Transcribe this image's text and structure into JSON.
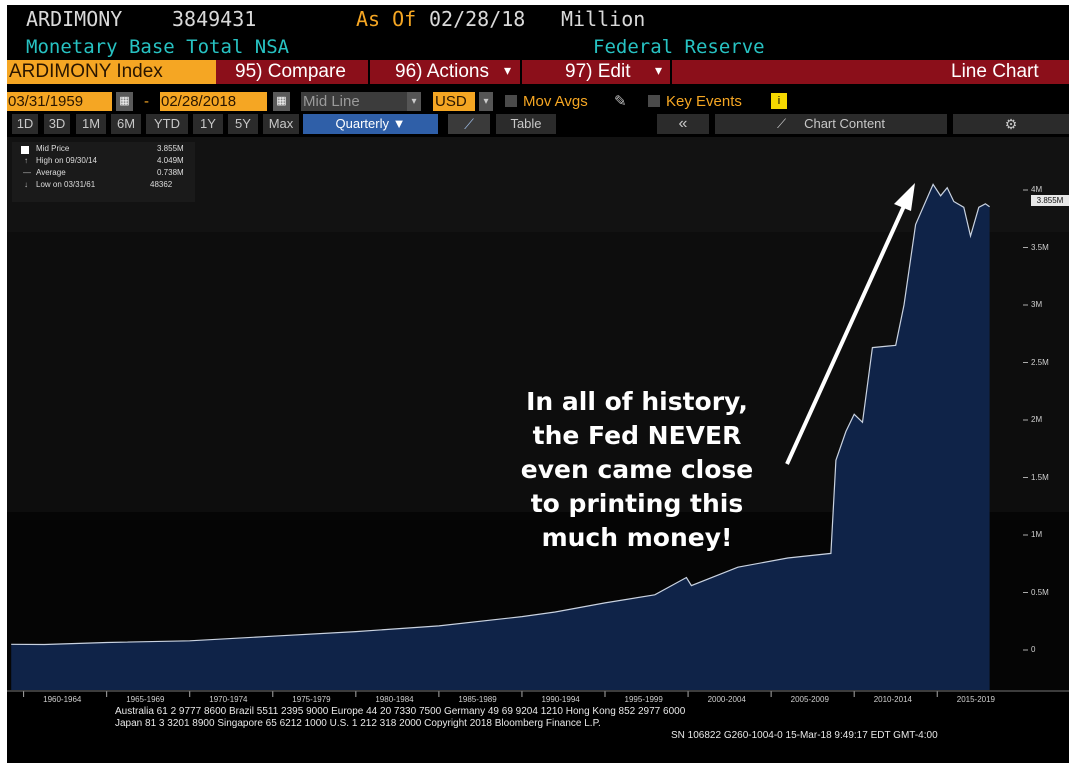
{
  "header": {
    "ticker": "ARDIMONY",
    "value": "3849431",
    "as_of_label": "As Of",
    "as_of_date": "02/28/18",
    "unit": "Million",
    "name": "Monetary Base Total NSA",
    "source": "Federal Reserve"
  },
  "menu": {
    "index": "ARDIMONY Index",
    "compare": "95) Compare",
    "actions": "96) Actions",
    "edit": "97) Edit",
    "chart_type": "Line Chart"
  },
  "controls": {
    "start_date": "03/31/1959",
    "dash": "-",
    "end_date": "02/28/2018",
    "line": "Mid Line",
    "currency": "USD",
    "mov_avgs": "Mov Avgs",
    "key_events": "Key Events"
  },
  "toolbar": {
    "periods": [
      "1D",
      "3D",
      "1M",
      "6M",
      "YTD",
      "1Y",
      "5Y",
      "Max"
    ],
    "frequency": "Quarterly ▼",
    "table": "Table",
    "collapse": "«",
    "chart_content": "Chart Content"
  },
  "legend": {
    "mid_label": "Mid Price",
    "mid_value": "3.855M",
    "high_label": "High on 09/30/14",
    "high_value": "4.049M",
    "avg_label": "Average",
    "avg_value": "0.738M",
    "low_label": "Low on 03/31/61",
    "low_value": "48362"
  },
  "annotation": [
    "In all of history,",
    "the Fed NEVER",
    "even came close",
    "to printing this",
    "much money!"
  ],
  "last_price_tag": "3.855M",
  "footer": {
    "line1": "Australia 61 2 9777 8600 Brazil 5511 2395 9000 Europe 44 20 7330 7500 Germany 49 69 9204 1210 Hong Kong 852 2977 6000",
    "line2": "Japan 81 3 3201 8900          Singapore 65 6212 1000          U.S. 1 212 318 2000          Copyright 2018 Bloomberg Finance L.P.",
    "line3": "SN 106822 G260-1004-0 15-Mar-18  9:49:17 EDT  GMT-4:00"
  },
  "colors": {
    "background": "#000000",
    "area_fill": "#0f2348",
    "line": "#c9d2e0",
    "header_text": "#d9d9d9",
    "cyan_text": "#27c2c2",
    "orange": "#f5a623",
    "menu_red": "#8b0f1a"
  },
  "chart_data": {
    "type": "area",
    "series": [
      {
        "values": [
          [
            1959.25,
            0.05
          ],
          [
            1961.25,
            0.048
          ],
          [
            1965,
            0.065
          ],
          [
            1970,
            0.08
          ],
          [
            1975,
            0.12
          ],
          [
            1980,
            0.16
          ],
          [
            1985,
            0.21
          ],
          [
            1990,
            0.29
          ],
          [
            1992,
            0.33
          ],
          [
            1995,
            0.41
          ],
          [
            1998,
            0.48
          ],
          [
            1999.9,
            0.63
          ],
          [
            2000.2,
            0.56
          ],
          [
            2003,
            0.72
          ],
          [
            2006,
            0.8
          ],
          [
            2008.6,
            0.84
          ],
          [
            2008.9,
            1.65
          ],
          [
            2009.5,
            1.9
          ],
          [
            2010,
            2.05
          ],
          [
            2010.5,
            1.98
          ],
          [
            2011.1,
            2.63
          ],
          [
            2012.5,
            2.65
          ],
          [
            2013,
            3.0
          ],
          [
            2013.7,
            3.7
          ],
          [
            2014.75,
            4.049
          ],
          [
            2015.2,
            3.95
          ],
          [
            2015.6,
            4.02
          ],
          [
            2016.0,
            3.9
          ],
          [
            2016.6,
            3.85
          ],
          [
            2017.0,
            3.6
          ],
          [
            2017.5,
            3.85
          ],
          [
            2017.9,
            3.88
          ],
          [
            2018.15,
            3.855
          ]
        ]
      }
    ],
    "ylim": [
      0,
      4.3
    ],
    "yticks": [
      "0",
      "0.5M",
      "1M",
      "1.5M",
      "2M",
      "2.5M",
      "3M",
      "3.5M",
      "4M"
    ],
    "x_categories": [
      "1960-1964",
      "1965-1969",
      "1970-1974",
      "1975-1979",
      "1980-1984",
      "1985-1989",
      "1990-1994",
      "1995-1999",
      "2000-2004",
      "2005-2009",
      "2010-2014",
      "2015-2019"
    ],
    "xlim": [
      1959,
      2019.2
    ],
    "grid": false
  }
}
